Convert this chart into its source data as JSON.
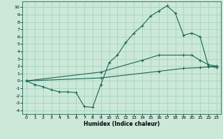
{
  "xlabel": "Humidex (Indice chaleur)",
  "bg_color": "#cbe8d8",
  "grid_color": "#a8d4c0",
  "line_color": "#1a6655",
  "xlim": [
    -0.5,
    23.5
  ],
  "ylim": [
    -4.5,
    10.8
  ],
  "xticks": [
    0,
    1,
    2,
    3,
    4,
    5,
    6,
    7,
    8,
    9,
    10,
    11,
    12,
    13,
    14,
    15,
    16,
    17,
    18,
    19,
    20,
    21,
    22,
    23
  ],
  "yticks": [
    -4,
    -3,
    -2,
    -1,
    0,
    1,
    2,
    3,
    4,
    5,
    6,
    7,
    8,
    9,
    10
  ],
  "line1_x": [
    0,
    1,
    2,
    3,
    4,
    5,
    6,
    7,
    8,
    9,
    10,
    11,
    12,
    13,
    14,
    15,
    16,
    17,
    18,
    19,
    20,
    21,
    22,
    23
  ],
  "line1_y": [
    0.0,
    -0.5,
    -0.8,
    -1.2,
    -1.5,
    -1.5,
    -1.6,
    -3.5,
    -3.6,
    -0.5,
    2.5,
    3.5,
    5.2,
    6.5,
    7.5,
    8.8,
    9.5,
    10.2,
    9.2,
    6.2,
    6.5,
    6.0,
    2.0,
    1.8
  ],
  "line2_x": [
    0,
    9,
    14,
    16,
    19,
    20,
    21,
    22,
    23
  ],
  "line2_y": [
    0.0,
    1.2,
    2.8,
    3.5,
    3.5,
    3.5,
    2.8,
    2.2,
    2.0
  ],
  "line3_x": [
    0,
    9,
    16,
    19,
    21,
    22,
    23
  ],
  "line3_y": [
    0.0,
    0.4,
    1.3,
    1.7,
    1.8,
    1.9,
    2.0
  ]
}
